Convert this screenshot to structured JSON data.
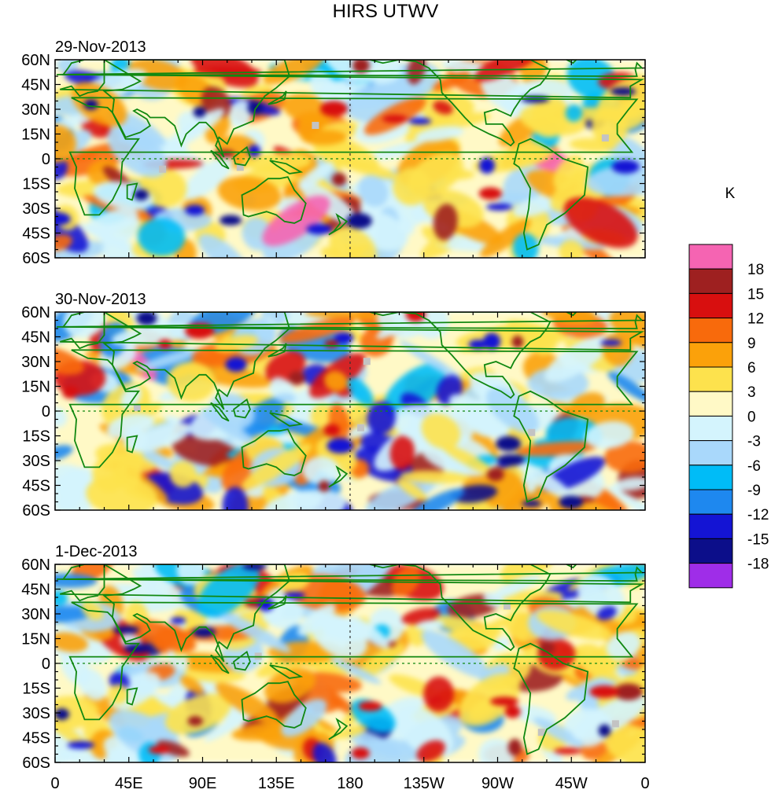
{
  "chart_data": {
    "type": "heatmap",
    "title": "HIRS UTWV",
    "units": "K",
    "panels": [
      {
        "date": "29-Nov-2013"
      },
      {
        "date": "30-Nov-2013"
      },
      {
        "date": "1-Dec-2013"
      }
    ],
    "x_ticks": [
      "0",
      "45E",
      "90E",
      "135E",
      "180",
      "135W",
      "90W",
      "45W",
      "0"
    ],
    "y_ticks": [
      "60N",
      "45N",
      "30N",
      "15N",
      "0",
      "15S",
      "30S",
      "45S",
      "60S"
    ],
    "xlim": [
      0,
      360
    ],
    "ylim": [
      -60,
      60
    ],
    "colorbar": {
      "colors": [
        "#9f2de8",
        "#0c0e8a",
        "#1414d4",
        "#1e88ef",
        "#00bcf7",
        "#a9d8fb",
        "#d4f4fd",
        "#fff9c6",
        "#fde24d",
        "#fba10a",
        "#f86a0c",
        "#d80f0f",
        "#9e2020",
        "#f564b2"
      ],
      "labels": [
        "-18",
        "-15",
        "-12",
        "-9",
        "-6",
        "-3",
        "0",
        "3",
        "6",
        "9",
        "12",
        "15",
        "18"
      ]
    },
    "land_color": "#118811",
    "missing_color": "#c3c3c3"
  }
}
